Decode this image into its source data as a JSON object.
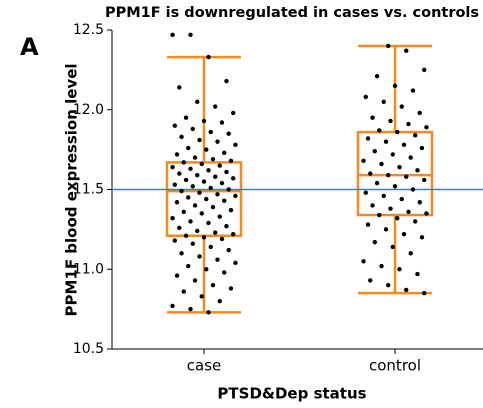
{
  "panel_label": "A",
  "chart_data": {
    "type": "box",
    "title": "PPM1F is downregulated in cases vs. controls",
    "x_label": "PTSD&Dep status",
    "y_label": "PPM1F blood expression level",
    "categories": [
      "case",
      "control"
    ],
    "ylim": [
      10.5,
      12.5
    ],
    "yticks": [
      10.5,
      {
        "value": 11,
        "label": "11.0"
      },
      11.5,
      {
        "value": 12,
        "label": "12.0"
      },
      12.5
    ],
    "box_color": "#f28a1e",
    "point_color": "#000000",
    "reference_line": {
      "value": 11.5,
      "color": "#3a7fe0"
    },
    "boxes": [
      {
        "whisker_low": 10.73,
        "q1": 11.21,
        "median": 11.49,
        "q3": 11.67,
        "whisker_high": 12.33,
        "points": [
          12.47,
          12.47,
          12.33,
          12.18,
          12.14,
          12.05,
          12.02,
          11.98,
          11.95,
          11.93,
          11.92,
          11.9,
          11.88,
          11.86,
          11.85,
          11.83,
          11.81,
          11.8,
          11.78,
          11.76,
          11.75,
          11.73,
          11.72,
          11.7,
          11.69,
          11.68,
          11.67,
          11.66,
          11.65,
          11.64,
          11.63,
          11.62,
          11.61,
          11.6,
          11.59,
          11.58,
          11.57,
          11.56,
          11.55,
          11.54,
          11.53,
          11.52,
          11.51,
          11.5,
          11.49,
          11.48,
          11.47,
          11.46,
          11.45,
          11.44,
          11.43,
          11.42,
          11.4,
          11.39,
          11.37,
          11.36,
          11.35,
          11.33,
          11.32,
          11.3,
          11.29,
          11.27,
          11.26,
          11.24,
          11.23,
          11.22,
          11.21,
          11.2,
          11.19,
          11.18,
          11.16,
          11.14,
          11.12,
          11.1,
          11.08,
          11.06,
          11.04,
          11.02,
          11.0,
          10.98,
          10.96,
          10.93,
          10.9,
          10.88,
          10.86,
          10.83,
          10.8,
          10.77,
          10.75,
          10.73
        ]
      },
      {
        "whisker_low": 10.85,
        "q1": 11.34,
        "median": 11.59,
        "q3": 11.86,
        "whisker_high": 12.4,
        "points": [
          12.4,
          12.37,
          12.25,
          12.21,
          12.15,
          12.12,
          12.08,
          12.05,
          12.02,
          11.98,
          11.95,
          11.93,
          11.91,
          11.89,
          11.87,
          11.86,
          11.84,
          11.82,
          11.8,
          11.78,
          11.76,
          11.74,
          11.72,
          11.7,
          11.68,
          11.66,
          11.64,
          11.62,
          11.6,
          11.59,
          11.58,
          11.56,
          11.54,
          11.52,
          11.5,
          11.48,
          11.46,
          11.44,
          11.42,
          11.4,
          11.38,
          11.36,
          11.35,
          11.34,
          11.32,
          11.3,
          11.28,
          11.25,
          11.22,
          11.2,
          11.17,
          11.14,
          11.1,
          11.05,
          11.02,
          11.0,
          10.97,
          10.93,
          10.9,
          10.87,
          10.85
        ]
      }
    ]
  }
}
